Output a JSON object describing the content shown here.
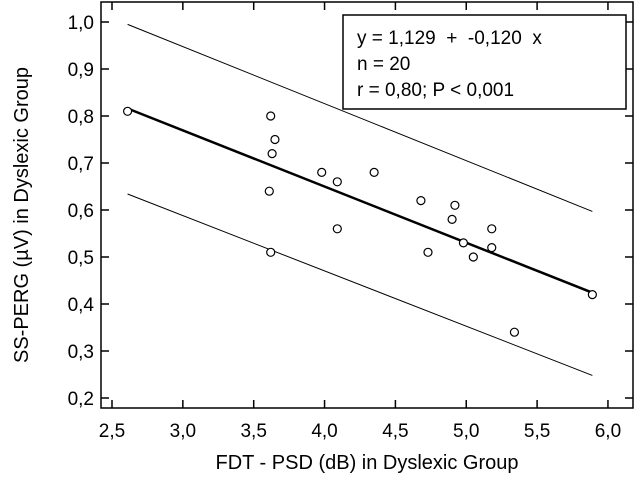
{
  "chart_data": {
    "type": "scatter",
    "xlabel": "FDT - PSD (dB) in Dyslexic Group",
    "ylabel": "SS-PERG (µV) in Dyslexic Group",
    "xlim": [
      2.5,
      6.0
    ],
    "ylim": [
      0.2,
      1.0
    ],
    "x_ticks": [
      2.5,
      3.0,
      3.5,
      4.0,
      4.5,
      5.0,
      5.5,
      6.0
    ],
    "x_tick_labels": [
      "2,5",
      "3,0",
      "3,5",
      "4,0",
      "4,5",
      "5,0",
      "5,5",
      "6,0"
    ],
    "y_ticks": [
      0.2,
      0.3,
      0.4,
      0.5,
      0.6,
      0.7,
      0.8,
      0.9,
      1.0
    ],
    "y_tick_labels": [
      "0,2",
      "0,3",
      "0,4",
      "0,5",
      "0,6",
      "0,7",
      "0,8",
      "0,9",
      "1,0"
    ],
    "points": [
      {
        "x": 2.61,
        "y": 0.81
      },
      {
        "x": 3.62,
        "y": 0.8
      },
      {
        "x": 3.65,
        "y": 0.75
      },
      {
        "x": 3.63,
        "y": 0.72
      },
      {
        "x": 3.61,
        "y": 0.64
      },
      {
        "x": 3.62,
        "y": 0.51
      },
      {
        "x": 3.98,
        "y": 0.68
      },
      {
        "x": 4.09,
        "y": 0.66
      },
      {
        "x": 4.35,
        "y": 0.68
      },
      {
        "x": 4.09,
        "y": 0.56
      },
      {
        "x": 4.68,
        "y": 0.62
      },
      {
        "x": 4.73,
        "y": 0.51
      },
      {
        "x": 4.92,
        "y": 0.61
      },
      {
        "x": 4.9,
        "y": 0.58
      },
      {
        "x": 4.98,
        "y": 0.53
      },
      {
        "x": 5.05,
        "y": 0.5
      },
      {
        "x": 5.18,
        "y": 0.56
      },
      {
        "x": 5.18,
        "y": 0.52
      },
      {
        "x": 5.34,
        "y": 0.34
      },
      {
        "x": 5.89,
        "y": 0.42
      }
    ],
    "regression_line": {
      "x": [
        2.61,
        5.89
      ],
      "y": [
        0.816,
        0.424
      ]
    },
    "upper_band": {
      "x": [
        2.61,
        5.89
      ],
      "y": [
        0.995,
        0.597
      ]
    },
    "lower_band": {
      "x": [
        2.61,
        5.89
      ],
      "y": [
        0.634,
        0.248
      ]
    },
    "stats_box": {
      "line1": "y = 1,129  +  -0,120  x",
      "line2": "n = 20",
      "line3": "r = 0,80; P < 0,001",
      "position": "top-right"
    }
  }
}
